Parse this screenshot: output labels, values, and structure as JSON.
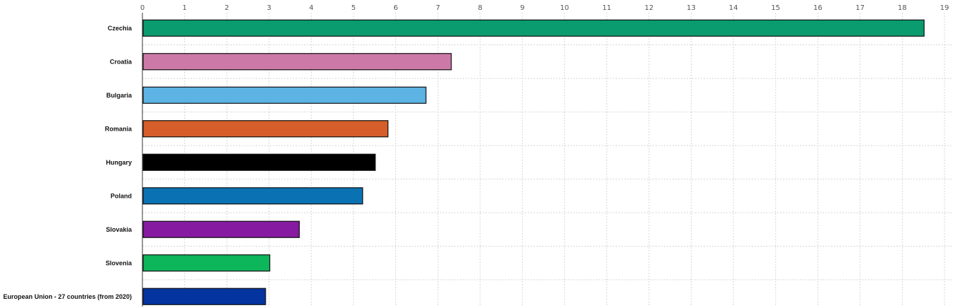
{
  "chart_data": {
    "type": "bar",
    "orientation": "horizontal",
    "categories": [
      "Czechia",
      "Croatia",
      "Bulgaria",
      "Romania",
      "Hungary",
      "Poland",
      "Slovakia",
      "Slovenia",
      "European Union - 27 countries (from 2020)"
    ],
    "values": [
      18.5,
      7.3,
      6.7,
      5.8,
      5.5,
      5.2,
      3.7,
      3.0,
      2.9
    ],
    "colors": [
      "#0a9b6e",
      "#cc79a7",
      "#5cb3e4",
      "#d55e2a",
      "#000000",
      "#0a72b2",
      "#861aa0",
      "#0db55b",
      "#04349f"
    ],
    "xlim": [
      0,
      19
    ],
    "xticks": [
      "0",
      "1",
      "2",
      "3",
      "4",
      "5",
      "6",
      "7",
      "8",
      "9",
      "10",
      "11",
      "12",
      "13",
      "14",
      "15",
      "16",
      "17",
      "18",
      "19"
    ],
    "xaxis_position": "top",
    "grid": true,
    "title": "",
    "xlabel": "",
    "ylabel": ""
  }
}
